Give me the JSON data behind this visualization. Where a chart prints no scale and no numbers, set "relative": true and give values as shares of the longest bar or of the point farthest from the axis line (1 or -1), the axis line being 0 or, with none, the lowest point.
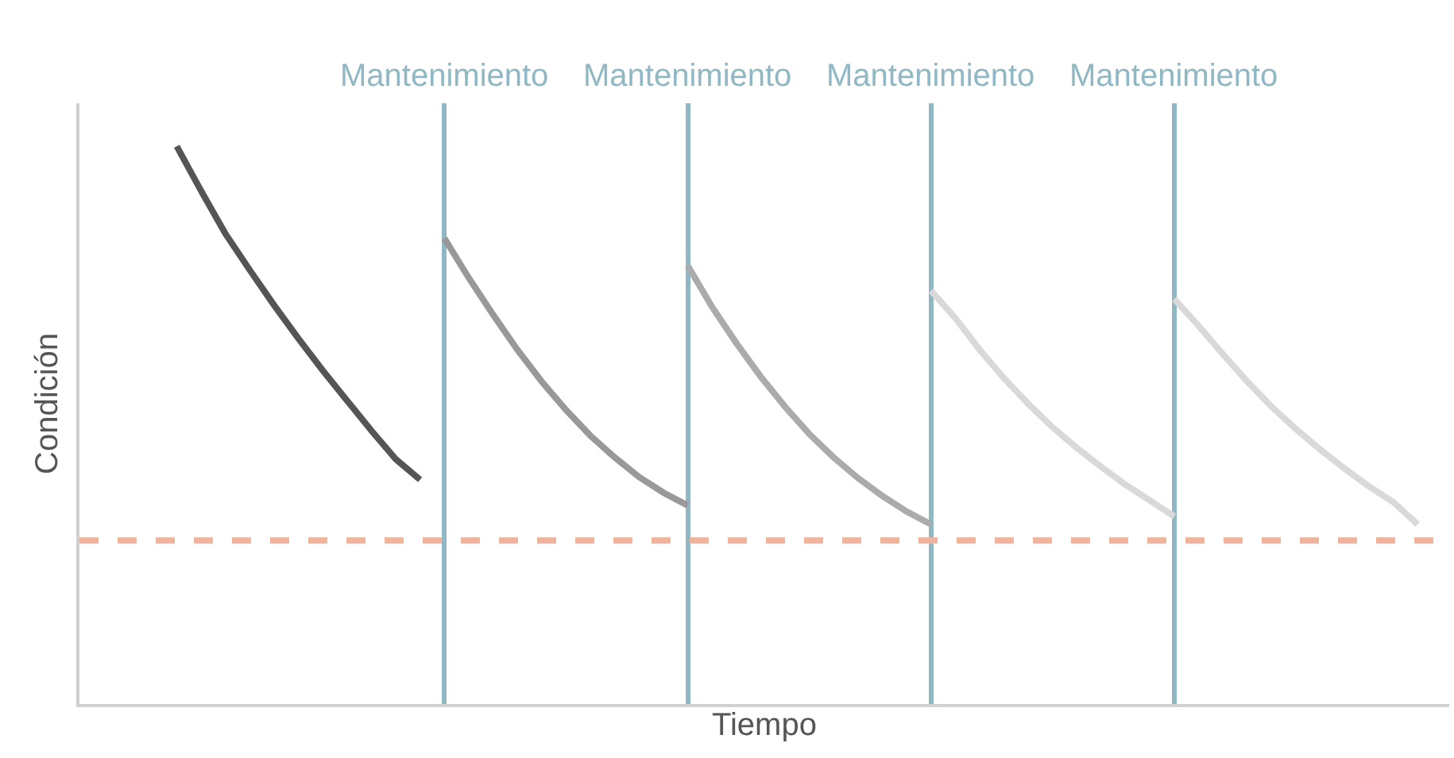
{
  "chart_data": {
    "type": "line",
    "relative": true,
    "xlabel": "Tiempo",
    "ylabel": "Condición",
    "categories": [
      null,
      null,
      null,
      null,
      null,
      null,
      null,
      null,
      null,
      null,
      null,
      null,
      null,
      null,
      null,
      null,
      null,
      null,
      null,
      null,
      null,
      null,
      null,
      null,
      null,
      null,
      null,
      null,
      null,
      null,
      null,
      null,
      null,
      null,
      null,
      null,
      null,
      null,
      null,
      null,
      null,
      null,
      null,
      null,
      null,
      null,
      null,
      null,
      null,
      null,
      null,
      null,
      null,
      null,
      null,
      null,
      null
    ],
    "series": [
      {
        "color": "#555555",
        "values": [
          null,
          null,
          null,
          null,
          1.0,
          0.92,
          0.843,
          0.778,
          0.715,
          0.655,
          0.598,
          0.544,
          0.49,
          0.439,
          0.402,
          null,
          null,
          null,
          null,
          null,
          null,
          null,
          null,
          null,
          null,
          null,
          null,
          null,
          null,
          null,
          null,
          null,
          null,
          null,
          null,
          null,
          null,
          null,
          null,
          null,
          null,
          null,
          null,
          null,
          null,
          null,
          null,
          null,
          null,
          null,
          null,
          null,
          null,
          null,
          null,
          null,
          null
        ]
      },
      {
        "color": "#999999",
        "values": [
          null,
          null,
          null,
          null,
          null,
          null,
          null,
          null,
          null,
          null,
          null,
          null,
          null,
          null,
          null,
          0.835,
          0.764,
          0.698,
          0.635,
          0.578,
          0.527,
          0.481,
          0.442,
          0.407,
          0.379,
          0.356,
          null,
          null,
          null,
          null,
          null,
          null,
          null,
          null,
          null,
          null,
          null,
          null,
          null,
          null,
          null,
          null,
          null,
          null,
          null,
          null,
          null,
          null,
          null,
          null,
          null,
          null,
          null,
          null,
          null,
          null,
          null
        ]
      },
      {
        "color": "#ababab",
        "values": [
          null,
          null,
          null,
          null,
          null,
          null,
          null,
          null,
          null,
          null,
          null,
          null,
          null,
          null,
          null,
          null,
          null,
          null,
          null,
          null,
          null,
          null,
          null,
          null,
          null,
          0.786,
          0.712,
          0.647,
          0.587,
          0.533,
          0.484,
          0.442,
          0.405,
          0.373,
          0.345,
          0.322,
          null,
          null,
          null,
          null,
          null,
          null,
          null,
          null,
          null,
          null,
          null,
          null,
          null,
          null,
          null,
          null,
          null,
          null,
          null,
          null,
          null
        ]
      },
      {
        "color": "#d9d9d9",
        "values": [
          null,
          null,
          null,
          null,
          null,
          null,
          null,
          null,
          null,
          null,
          null,
          null,
          null,
          null,
          null,
          null,
          null,
          null,
          null,
          null,
          null,
          null,
          null,
          null,
          null,
          null,
          null,
          null,
          null,
          null,
          null,
          null,
          null,
          null,
          null,
          0.741,
          0.692,
          0.635,
          0.584,
          0.538,
          0.496,
          0.459,
          0.425,
          0.393,
          0.365,
          0.336,
          null,
          null,
          null,
          null,
          null,
          null,
          null,
          null,
          null,
          null,
          null
        ]
      },
      {
        "color": "#d9d9d9",
        "values": [
          null,
          null,
          null,
          null,
          null,
          null,
          null,
          null,
          null,
          null,
          null,
          null,
          null,
          null,
          null,
          null,
          null,
          null,
          null,
          null,
          null,
          null,
          null,
          null,
          null,
          null,
          null,
          null,
          null,
          null,
          null,
          null,
          null,
          null,
          null,
          null,
          null,
          null,
          null,
          null,
          null,
          null,
          null,
          null,
          null,
          0.726,
          0.678,
          0.627,
          0.578,
          0.533,
          0.493,
          0.456,
          0.422,
          0.39,
          0.362,
          0.322,
          null
        ]
      }
    ],
    "ref_lines": [
      {
        "axis": "y",
        "value": 0.293,
        "color": "#f0b49c",
        "line_style": "dashed"
      }
    ],
    "annotations": [
      "Mantenimiento",
      "Mantenimiento",
      "Mantenimiento",
      "Mantenimiento"
    ],
    "grid": "x",
    "marker": "none",
    "line_style": "solid"
  }
}
